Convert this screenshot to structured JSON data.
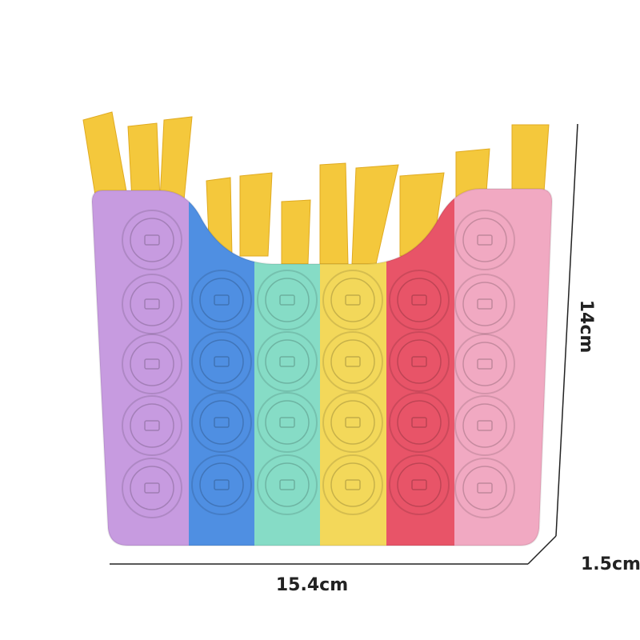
{
  "product": {
    "colors": {
      "fries": "#f4c83c",
      "columns": [
        "#c79be0",
        "#4f8fe2",
        "#86dcc6",
        "#f3d85a",
        "#e85468",
        "#f1a9c2"
      ]
    }
  },
  "dimensions": {
    "height": "14cm",
    "width": "15.4cm",
    "depth": "1.5cm"
  }
}
